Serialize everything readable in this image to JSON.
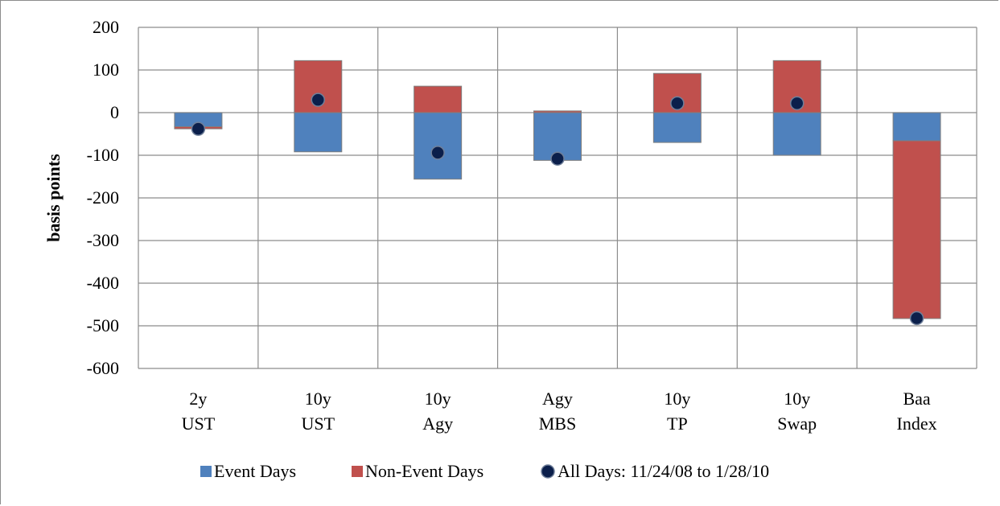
{
  "chart_data": {
    "type": "bar",
    "stacked": true,
    "ylabel": "basis points",
    "ylim": [
      -600,
      200
    ],
    "yticks": [
      200,
      100,
      0,
      -100,
      -200,
      -300,
      -400,
      -500,
      -600
    ],
    "grid": true,
    "legend_position": "bottom",
    "categories": [
      [
        "2y",
        "UST"
      ],
      [
        "10y",
        "UST"
      ],
      [
        "10y",
        "Agy"
      ],
      [
        "Agy",
        "MBS"
      ],
      [
        "10y",
        "TP"
      ],
      [
        "10y",
        "Swap"
      ],
      [
        "Baa",
        "Index"
      ]
    ],
    "series": [
      {
        "name": "Event Days",
        "kind": "bar",
        "color": "#4f81bd",
        "values": [
          -33,
          -92,
          -156,
          -112,
          -70,
          -100,
          -66
        ]
      },
      {
        "name": "Non-Event Days",
        "kind": "bar",
        "color": "#c0504d",
        "values": [
          -5,
          122,
          62,
          4,
          92,
          122,
          -417
        ]
      },
      {
        "name": "All Days: 11/24/08 to 1/28/10",
        "kind": "marker",
        "color": "#0b1f4b",
        "values": [
          -38,
          30,
          -94,
          -108,
          22,
          22,
          -482
        ]
      }
    ]
  }
}
